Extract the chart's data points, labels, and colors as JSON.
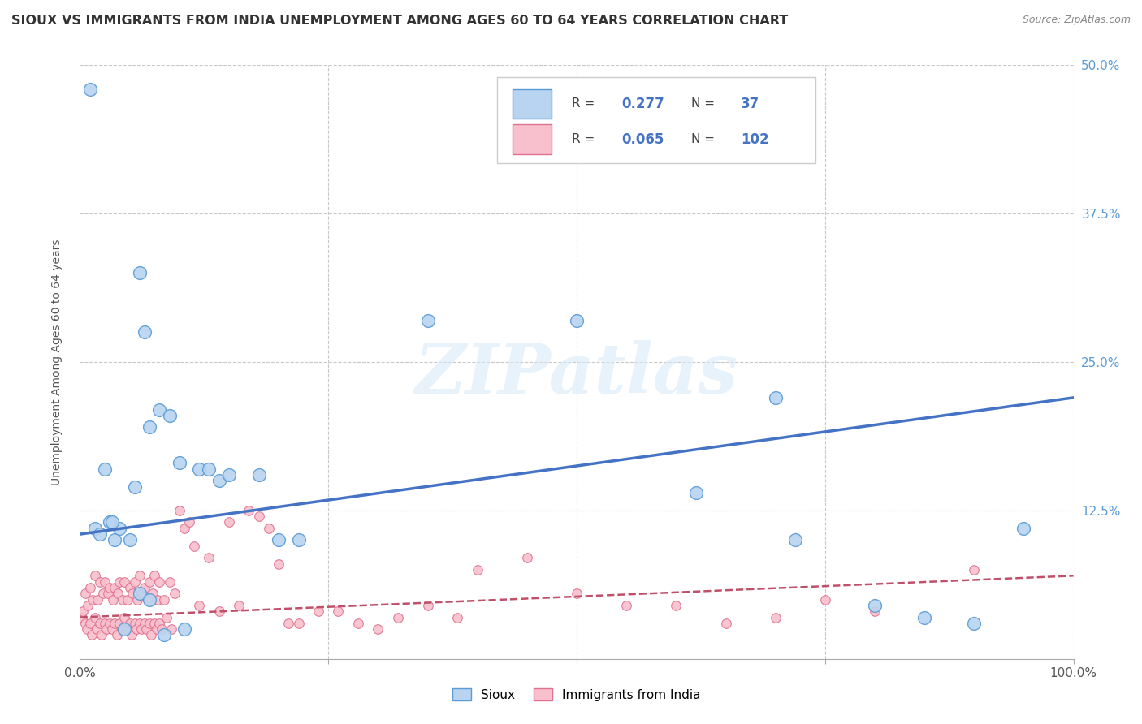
{
  "title": "SIOUX VS IMMIGRANTS FROM INDIA UNEMPLOYMENT AMONG AGES 60 TO 64 YEARS CORRELATION CHART",
  "source": "Source: ZipAtlas.com",
  "ylabel": "Unemployment Among Ages 60 to 64 years",
  "xlim": [
    0,
    100
  ],
  "ylim": [
    0,
    50
  ],
  "yticks": [
    0,
    12.5,
    25.0,
    37.5,
    50.0
  ],
  "yticklabels_right": [
    "",
    "12.5%",
    "25.0%",
    "37.5%",
    "50.0%"
  ],
  "xtick_positions": [
    0,
    25,
    50,
    75,
    100
  ],
  "xticklabels": [
    "0.0%",
    "",
    "",
    "",
    "100.0%"
  ],
  "watermark_text": "ZIPatlas",
  "sioux_color": "#b8d4f0",
  "sioux_edge": "#5b9bd5",
  "india_color": "#f8c0cc",
  "india_edge": "#e07090",
  "sioux_line_color": "#4472c4",
  "india_line_color": "#c0506a",
  "background_color": "#ffffff",
  "grid_color": "#c8c8c8",
  "sioux_trend_x": [
    0,
    100
  ],
  "sioux_trend_y": [
    10.5,
    22.0
  ],
  "india_trend_x": [
    0,
    100
  ],
  "india_trend_y": [
    3.5,
    7.0
  ],
  "sioux_x": [
    1.5,
    2.0,
    3.0,
    3.5,
    4.0,
    5.0,
    5.5,
    6.0,
    6.5,
    7.0,
    8.0,
    9.0,
    10.0,
    12.0,
    13.0,
    14.0,
    15.0,
    18.0,
    20.0,
    22.0,
    35.0,
    50.0,
    62.0,
    70.0,
    72.0,
    80.0,
    85.0,
    90.0,
    95.0,
    1.0,
    2.5,
    3.2,
    4.5,
    6.0,
    7.0,
    8.5,
    10.5
  ],
  "sioux_y": [
    11.0,
    10.5,
    11.5,
    10.0,
    11.0,
    10.0,
    14.5,
    32.5,
    27.5,
    19.5,
    21.0,
    20.5,
    16.5,
    16.0,
    16.0,
    15.0,
    15.5,
    15.5,
    10.0,
    10.0,
    28.5,
    28.5,
    14.0,
    22.0,
    10.0,
    4.5,
    3.5,
    3.0,
    11.0,
    48.0,
    16.0,
    11.5,
    2.5,
    5.5,
    5.0,
    2.0,
    2.5
  ],
  "india_x": [
    0.2,
    0.3,
    0.5,
    0.5,
    0.7,
    0.8,
    1.0,
    1.0,
    1.2,
    1.3,
    1.5,
    1.5,
    1.7,
    1.8,
    2.0,
    2.0,
    2.2,
    2.3,
    2.5,
    2.5,
    2.7,
    2.8,
    3.0,
    3.0,
    3.2,
    3.3,
    3.5,
    3.5,
    3.7,
    3.8,
    4.0,
    4.0,
    4.2,
    4.3,
    4.5,
    4.5,
    4.7,
    4.8,
    5.0,
    5.0,
    5.2,
    5.3,
    5.5,
    5.5,
    5.7,
    5.8,
    6.0,
    6.0,
    6.2,
    6.3,
    6.5,
    6.5,
    6.7,
    6.8,
    7.0,
    7.0,
    7.2,
    7.3,
    7.5,
    7.5,
    7.7,
    7.8,
    8.0,
    8.0,
    8.2,
    8.5,
    8.7,
    9.0,
    9.2,
    9.5,
    10.0,
    10.5,
    11.0,
    11.5,
    12.0,
    13.0,
    14.0,
    15.0,
    16.0,
    17.0,
    18.0,
    19.0,
    20.0,
    21.0,
    22.0,
    24.0,
    26.0,
    28.0,
    30.0,
    32.0,
    35.0,
    38.0,
    40.0,
    45.0,
    50.0,
    55.0,
    60.0,
    65.0,
    70.0,
    75.0,
    80.0,
    90.0
  ],
  "india_y": [
    3.5,
    4.0,
    3.0,
    5.5,
    2.5,
    4.5,
    3.0,
    6.0,
    2.0,
    5.0,
    3.5,
    7.0,
    2.5,
    5.0,
    3.0,
    6.5,
    2.0,
    5.5,
    3.0,
    6.5,
    2.5,
    5.5,
    3.0,
    6.0,
    2.5,
    5.0,
    3.0,
    6.0,
    2.0,
    5.5,
    3.0,
    6.5,
    2.5,
    5.0,
    3.5,
    6.5,
    2.5,
    5.0,
    3.0,
    6.0,
    2.0,
    5.5,
    3.0,
    6.5,
    2.5,
    5.0,
    3.0,
    7.0,
    2.5,
    5.5,
    3.0,
    6.0,
    2.5,
    5.0,
    3.0,
    6.5,
    2.0,
    5.5,
    3.0,
    7.0,
    2.5,
    5.0,
    3.0,
    6.5,
    2.5,
    5.0,
    3.5,
    6.5,
    2.5,
    5.5,
    12.5,
    11.0,
    11.5,
    9.5,
    4.5,
    8.5,
    4.0,
    11.5,
    4.5,
    12.5,
    12.0,
    11.0,
    8.0,
    3.0,
    3.0,
    4.0,
    4.0,
    3.0,
    2.5,
    3.5,
    4.5,
    3.5,
    7.5,
    8.5,
    5.5,
    4.5,
    4.5,
    3.0,
    3.5,
    5.0,
    4.0,
    7.5
  ]
}
